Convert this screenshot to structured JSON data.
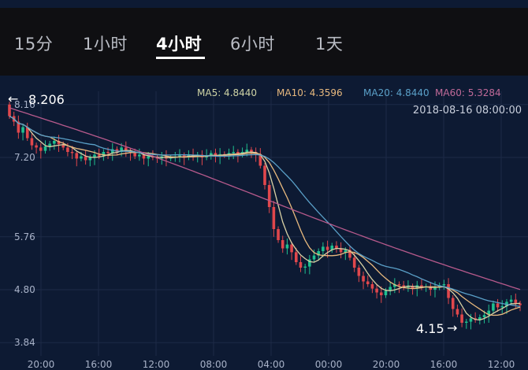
{
  "tabs": [
    {
      "label": "15分",
      "active": false
    },
    {
      "label": "1小时",
      "active": false
    },
    {
      "label": "4小时",
      "active": true
    },
    {
      "label": "6小时",
      "active": false
    },
    {
      "label": "1天",
      "active": false
    }
  ],
  "colors": {
    "up": "#1fbf8f",
    "down": "#e0474c",
    "ma5": "#d9d1a4",
    "ma10": "#e8b97e",
    "ma20": "#5aa0c8",
    "ma60": "#b75a8c",
    "grid": "#1d2a47"
  },
  "chart_data": {
    "type": "candlestick",
    "legend": [
      {
        "label": "MA5: 4.8440",
        "color": "#cfd4a6"
      },
      {
        "label": "MA10: 4.3596",
        "color": "#e8b97e"
      },
      {
        "label": "MA20: 4.8440",
        "color": "#5aa0c8"
      },
      {
        "label": "MA60: 5.3284",
        "color": "#c06a98"
      }
    ],
    "timestamp": "2018-08-16 08:00:00",
    "y_ticks": [
      "8.16",
      "7.20",
      "5.76",
      "4.80",
      "3.84"
    ],
    "x_ticks": [
      "20:00",
      "16:00",
      "12:00",
      "08:00",
      "04:00",
      "00:00",
      "20:00",
      "16:00",
      "12:00"
    ],
    "ylim": [
      3.6,
      8.4
    ],
    "high_marker": "8.206",
    "low_marker": "4.15",
    "closes": [
      7.95,
      7.85,
      7.65,
      7.75,
      7.55,
      7.42,
      7.38,
      7.32,
      7.4,
      7.45,
      7.5,
      7.44,
      7.38,
      7.3,
      7.28,
      7.18,
      7.22,
      7.15,
      7.2,
      7.25,
      7.22,
      7.3,
      7.28,
      7.35,
      7.3,
      7.38,
      7.32,
      7.28,
      7.22,
      7.25,
      7.18,
      7.22,
      7.2,
      7.18,
      7.22,
      7.18,
      7.2,
      7.22,
      7.24,
      7.2,
      7.25,
      7.22,
      7.25,
      7.2,
      7.24,
      7.28,
      7.22,
      7.26,
      7.24,
      7.28,
      7.3,
      7.25,
      7.3,
      7.34,
      7.3,
      7.26,
      7.05,
      6.7,
      6.3,
      5.9,
      5.7,
      5.55,
      5.62,
      5.48,
      5.3,
      5.2,
      5.22,
      5.35,
      5.42,
      5.5,
      5.58,
      5.52,
      5.6,
      5.55,
      5.48,
      5.52,
      5.38,
      5.2,
      5.05,
      4.95,
      4.9,
      4.82,
      4.75,
      4.7,
      4.78,
      4.85,
      4.9,
      4.88,
      4.84,
      4.86,
      4.82,
      4.88,
      4.84,
      4.86,
      4.8,
      4.84,
      4.88,
      4.9,
      4.65,
      4.45,
      4.35,
      4.2,
      4.22,
      4.28,
      4.25,
      4.3,
      4.34,
      4.42,
      4.55,
      4.48,
      4.5,
      4.58,
      4.62,
      4.55,
      4.52
    ]
  }
}
